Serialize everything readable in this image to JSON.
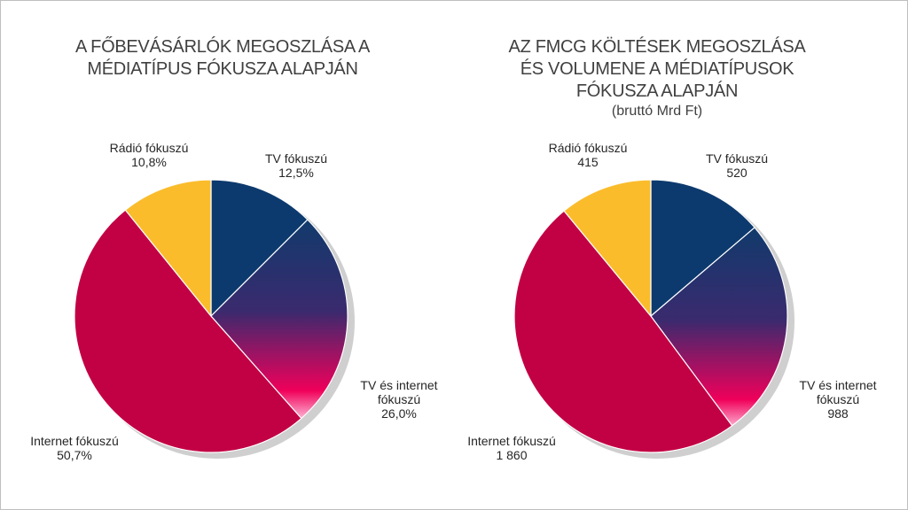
{
  "colors": {
    "tv": "#0d3a6e",
    "tv_internet_top": "#123a6c",
    "tv_internet_bottom": "#f0005a",
    "internet": "#c20044",
    "radio": "#fbbc2c",
    "shadow": "#cfcfcf"
  },
  "chart_data": [
    {
      "type": "pie",
      "title": "A FŐBEVÁSÁRLÓK MEGOSZLÁSA  A MÉDIATÍPUS FÓKUSZA ALAPJÁN",
      "title_lines": [
        "A FŐBEVÁSÁRLÓK MEGOSZLÁSA  A",
        "MÉDIATÍPUS FÓKUSZA ALAPJÁN"
      ],
      "unit": "%",
      "slices": [
        {
          "key": "tv",
          "label": "TV fókuszú",
          "label_lines": [
            "TV fókuszú"
          ],
          "value": 12.5,
          "value_text": "12,5%"
        },
        {
          "key": "tv_internet",
          "label": "TV és internet fókuszú",
          "label_lines": [
            "TV és internet",
            "fókuszú"
          ],
          "value": 26.0,
          "value_text": "26,0%"
        },
        {
          "key": "internet",
          "label": "Internet fókuszú",
          "label_lines": [
            "Internet fókuszú"
          ],
          "value": 50.7,
          "value_text": "50,7%"
        },
        {
          "key": "radio",
          "label": "Rádió fókuszú",
          "label_lines": [
            "Rádió fókuszú"
          ],
          "value": 10.8,
          "value_text": "10,8%"
        }
      ]
    },
    {
      "type": "pie",
      "title": "AZ FMCG KÖLTÉSEK MEGOSZLÁSA ÉS VOLUMENE A MÉDIATÍPUSOK FÓKUSZA ALAPJÁN",
      "title_lines": [
        "AZ FMCG KÖLTÉSEK MEGOSZLÁSA",
        "ÉS VOLUMENE A MÉDIATÍPUSOK",
        "FÓKUSZA ALAPJÁN"
      ],
      "subtitle": "(bruttó Mrd Ft)",
      "unit": "Mrd Ft",
      "slices": [
        {
          "key": "tv",
          "label": "TV fókuszú",
          "label_lines": [
            "TV fókuszú"
          ],
          "value": 520,
          "value_text": "520"
        },
        {
          "key": "tv_internet",
          "label": "TV és internet fókuszú",
          "label_lines": [
            "TV és internet",
            "fókuszú"
          ],
          "value": 988,
          "value_text": "988"
        },
        {
          "key": "internet",
          "label": "Internet fókuszú",
          "label_lines": [
            "Internet fókuszú"
          ],
          "value": 1860,
          "value_text": "1 860"
        },
        {
          "key": "radio",
          "label": "Rádió fókuszú",
          "label_lines": [
            "Rádió fókuszú"
          ],
          "value": 415,
          "value_text": "415"
        }
      ]
    }
  ]
}
